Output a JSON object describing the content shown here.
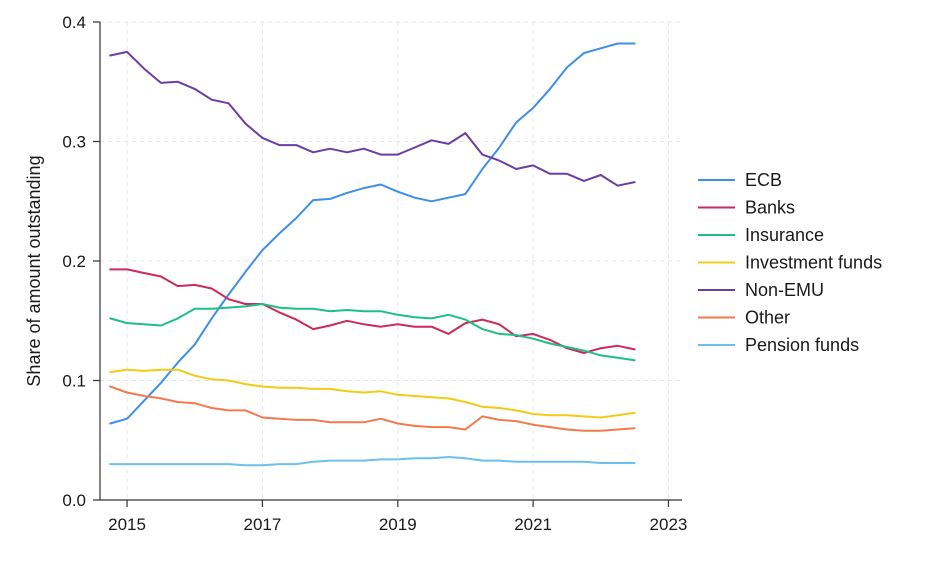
{
  "chart_data": {
    "type": "line",
    "title": "",
    "xlabel": "",
    "ylabel": "Share of amount outstanding",
    "xlim": [
      2014.6,
      2023.2
    ],
    "ylim": [
      0,
      0.4
    ],
    "x_ticks": [
      2015,
      2017,
      2019,
      2021,
      2023
    ],
    "y_ticks": [
      0.0,
      0.1,
      0.2,
      0.3,
      0.4
    ],
    "x_tick_labels": [
      "2015",
      "2017",
      "2019",
      "2021",
      "2023"
    ],
    "y_tick_labels": [
      "0.0",
      "0.1",
      "0.2",
      "0.3",
      "0.4"
    ],
    "grid": true,
    "legend_position": "right",
    "x": [
      2014.75,
      2015.0,
      2015.25,
      2015.5,
      2015.75,
      2016.0,
      2016.25,
      2016.5,
      2016.75,
      2017.0,
      2017.25,
      2017.5,
      2017.75,
      2018.0,
      2018.25,
      2018.5,
      2018.75,
      2019.0,
      2019.25,
      2019.5,
      2019.75,
      2020.0,
      2020.25,
      2020.5,
      2020.75,
      2021.0,
      2021.25,
      2021.5,
      2021.75,
      2022.0,
      2022.25,
      2022.5
    ],
    "series": [
      {
        "name": "ECB",
        "color": "#3d8fe8",
        "values": [
          0.064,
          0.068,
          0.083,
          0.098,
          0.115,
          0.13,
          0.152,
          0.172,
          0.191,
          0.209,
          0.223,
          0.236,
          0.251,
          0.252,
          0.257,
          0.261,
          0.264,
          0.258,
          0.253,
          0.25,
          0.253,
          0.256,
          0.277,
          0.295,
          0.316,
          0.328,
          0.344,
          0.362,
          0.374,
          0.378,
          0.382,
          0.382
        ]
      },
      {
        "name": "Banks",
        "color": "#cc2a5a",
        "values": [
          0.193,
          0.193,
          0.19,
          0.187,
          0.179,
          0.18,
          0.177,
          0.168,
          0.164,
          0.164,
          0.157,
          0.151,
          0.143,
          0.146,
          0.15,
          0.147,
          0.145,
          0.147,
          0.145,
          0.145,
          0.139,
          0.148,
          0.151,
          0.147,
          0.137,
          0.139,
          0.134,
          0.127,
          0.123,
          0.127,
          0.129,
          0.126
        ]
      },
      {
        "name": "Insurance",
        "color": "#1fbf84",
        "values": [
          0.152,
          0.148,
          0.147,
          0.146,
          0.152,
          0.16,
          0.16,
          0.161,
          0.162,
          0.164,
          0.161,
          0.16,
          0.16,
          0.158,
          0.159,
          0.158,
          0.158,
          0.155,
          0.153,
          0.152,
          0.155,
          0.151,
          0.143,
          0.139,
          0.138,
          0.135,
          0.131,
          0.128,
          0.125,
          0.121,
          0.119,
          0.117
        ]
      },
      {
        "name": "Investment funds",
        "color": "#f2cc14",
        "values": [
          0.107,
          0.109,
          0.108,
          0.109,
          0.109,
          0.104,
          0.101,
          0.1,
          0.097,
          0.095,
          0.094,
          0.094,
          0.093,
          0.093,
          0.091,
          0.09,
          0.091,
          0.088,
          0.087,
          0.086,
          0.085,
          0.082,
          0.078,
          0.077,
          0.075,
          0.072,
          0.071,
          0.071,
          0.07,
          0.069,
          0.071,
          0.073
        ]
      },
      {
        "name": "Non-EMU",
        "color": "#6a3ea3",
        "values": [
          0.372,
          0.375,
          0.361,
          0.349,
          0.35,
          0.344,
          0.335,
          0.332,
          0.315,
          0.303,
          0.297,
          0.297,
          0.291,
          0.294,
          0.291,
          0.294,
          0.289,
          0.289,
          0.295,
          0.301,
          0.298,
          0.307,
          0.289,
          0.284,
          0.277,
          0.28,
          0.273,
          0.273,
          0.267,
          0.272,
          0.263,
          0.266
        ]
      },
      {
        "name": "Other",
        "color": "#f47a4e",
        "values": [
          0.095,
          0.09,
          0.087,
          0.085,
          0.082,
          0.081,
          0.077,
          0.075,
          0.075,
          0.069,
          0.068,
          0.067,
          0.067,
          0.065,
          0.065,
          0.065,
          0.068,
          0.064,
          0.062,
          0.061,
          0.061,
          0.059,
          0.07,
          0.067,
          0.066,
          0.063,
          0.061,
          0.059,
          0.058,
          0.058,
          0.059,
          0.06
        ]
      },
      {
        "name": "Pension funds",
        "color": "#6cc0f0",
        "values": [
          0.03,
          0.03,
          0.03,
          0.03,
          0.03,
          0.03,
          0.03,
          0.03,
          0.029,
          0.029,
          0.03,
          0.03,
          0.032,
          0.033,
          0.033,
          0.033,
          0.034,
          0.034,
          0.035,
          0.035,
          0.036,
          0.035,
          0.033,
          0.033,
          0.032,
          0.032,
          0.032,
          0.032,
          0.032,
          0.031,
          0.031,
          0.031
        ]
      }
    ]
  }
}
